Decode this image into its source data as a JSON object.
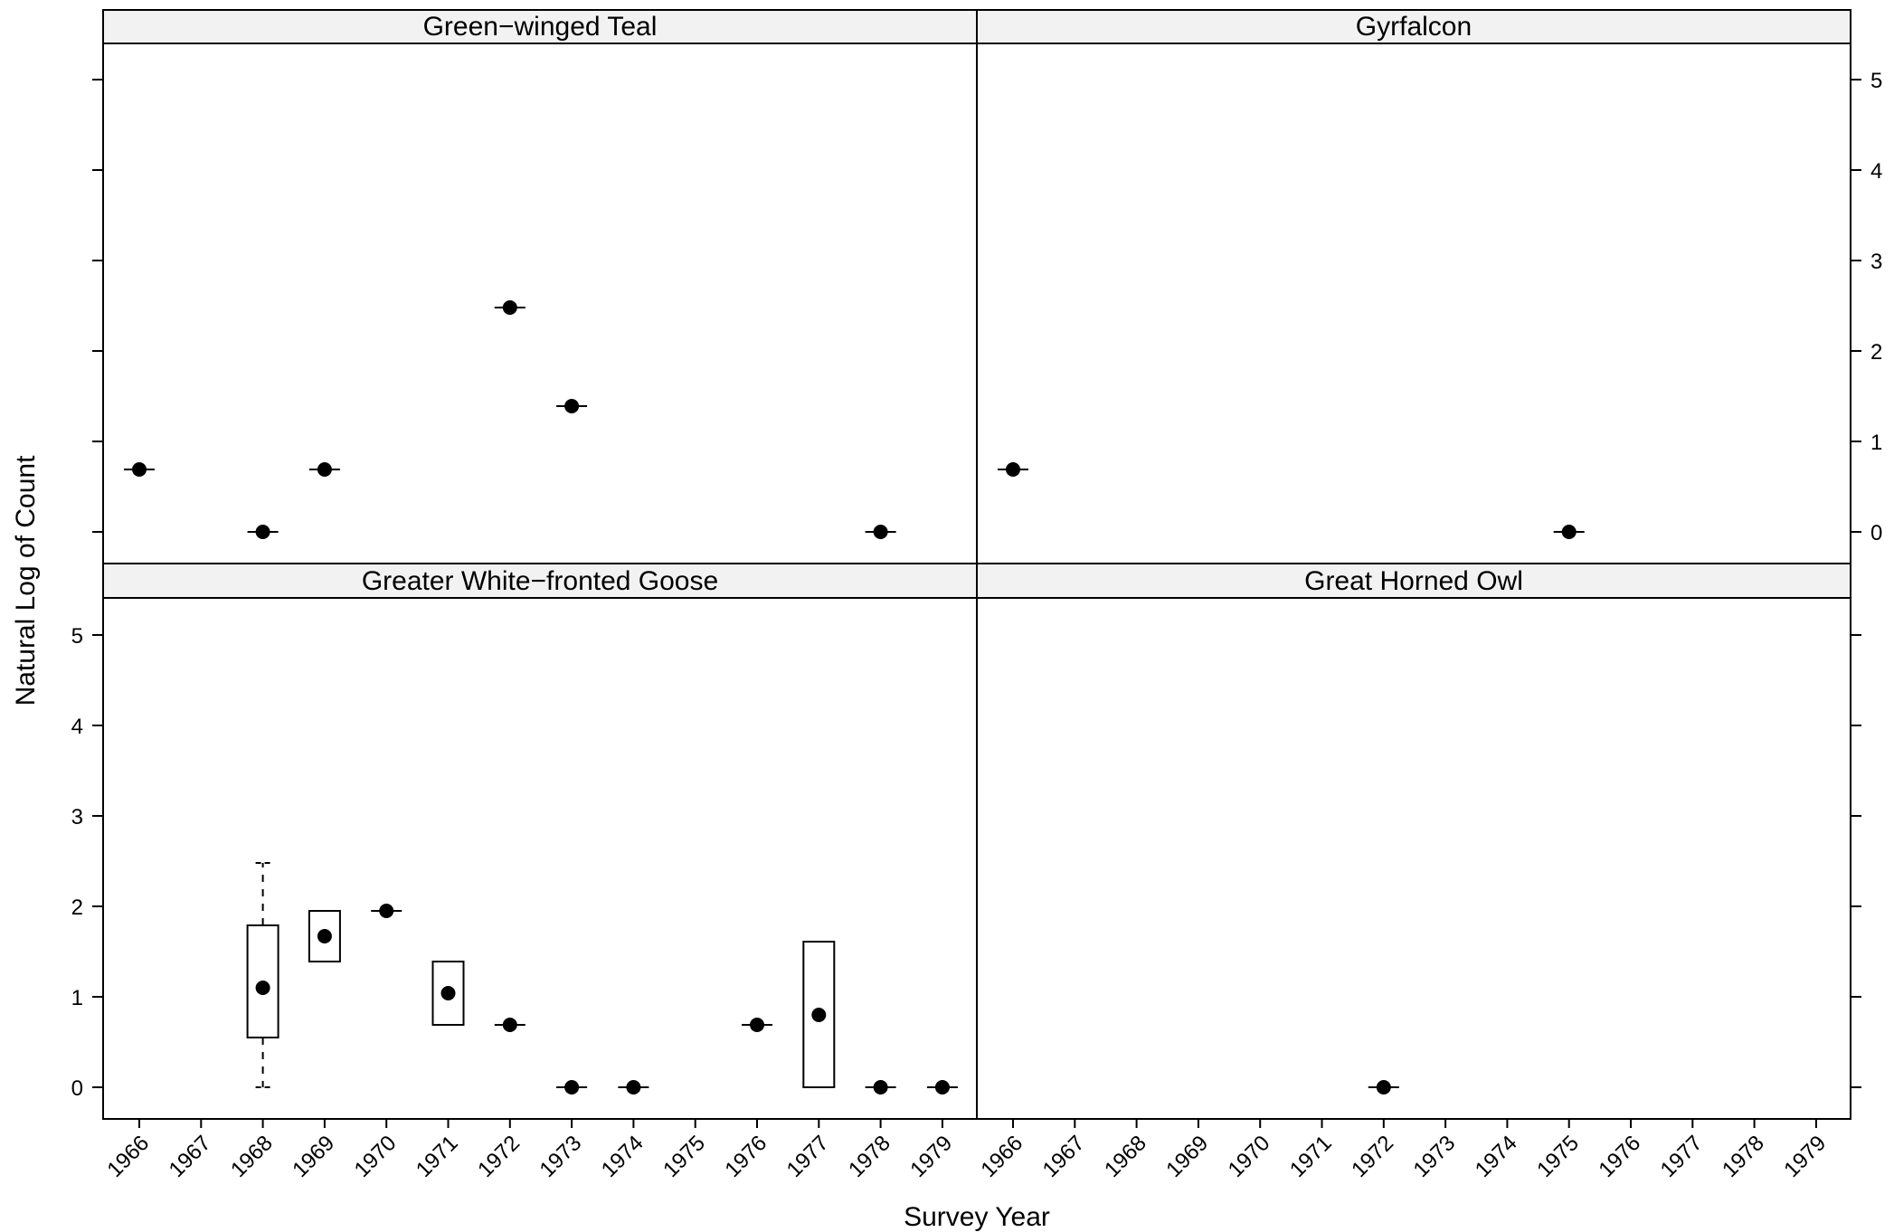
{
  "chart_data": {
    "type": "box",
    "xlabel": "Survey Year",
    "ylabel": "Natural Log of Count",
    "x_categories": [
      "1966",
      "1967",
      "1968",
      "1969",
      "1970",
      "1971",
      "1972",
      "1973",
      "1974",
      "1975",
      "1976",
      "1977",
      "1978",
      "1979"
    ],
    "y_ticks": [
      0,
      1,
      2,
      3,
      4,
      5
    ],
    "ylim": [
      -0.35,
      5.35
    ],
    "grid": false,
    "legend": "none",
    "panels": [
      {
        "title": "Green−winged Teal",
        "position": "top-left",
        "boxes": [
          {
            "year": "1966",
            "min": 0.69,
            "q1": 0.69,
            "median": 0.69,
            "q3": 0.69,
            "max": 0.69
          },
          {
            "year": "1968",
            "min": 0.0,
            "q1": 0.0,
            "median": 0.0,
            "q3": 0.0,
            "max": 0.0
          },
          {
            "year": "1969",
            "min": 0.69,
            "q1": 0.69,
            "median": 0.69,
            "q3": 0.69,
            "max": 0.69
          },
          {
            "year": "1972",
            "min": 2.48,
            "q1": 2.48,
            "median": 2.48,
            "q3": 2.48,
            "max": 2.48
          },
          {
            "year": "1973",
            "min": 1.39,
            "q1": 1.39,
            "median": 1.39,
            "q3": 1.39,
            "max": 1.39
          },
          {
            "year": "1978",
            "min": 0.0,
            "q1": 0.0,
            "median": 0.0,
            "q3": 0.0,
            "max": 0.0
          }
        ]
      },
      {
        "title": "Gyrfalcon",
        "position": "top-right",
        "boxes": [
          {
            "year": "1966",
            "min": 0.69,
            "q1": 0.69,
            "median": 0.69,
            "q3": 0.69,
            "max": 0.69
          },
          {
            "year": "1975",
            "min": 0.0,
            "q1": 0.0,
            "median": 0.0,
            "q3": 0.0,
            "max": 0.0
          }
        ]
      },
      {
        "title": "Greater White−fronted Goose",
        "position": "bottom-left",
        "boxes": [
          {
            "year": "1968",
            "min": 0.0,
            "q1": 0.55,
            "median": 1.1,
            "q3": 1.79,
            "max": 2.48
          },
          {
            "year": "1969",
            "min": 1.39,
            "q1": 1.39,
            "median": 1.67,
            "q3": 1.95,
            "max": 1.95
          },
          {
            "year": "1970",
            "min": 1.95,
            "q1": 1.95,
            "median": 1.95,
            "q3": 1.95,
            "max": 1.95
          },
          {
            "year": "1971",
            "min": 0.69,
            "q1": 0.69,
            "median": 1.04,
            "q3": 1.39,
            "max": 1.39
          },
          {
            "year": "1972",
            "min": 0.69,
            "q1": 0.69,
            "median": 0.69,
            "q3": 0.69,
            "max": 0.69
          },
          {
            "year": "1973",
            "min": 0.0,
            "q1": 0.0,
            "median": 0.0,
            "q3": 0.0,
            "max": 0.0
          },
          {
            "year": "1974",
            "min": 0.0,
            "q1": 0.0,
            "median": 0.0,
            "q3": 0.0,
            "max": 0.0
          },
          {
            "year": "1976",
            "min": 0.69,
            "q1": 0.69,
            "median": 0.69,
            "q3": 0.69,
            "max": 0.69
          },
          {
            "year": "1977",
            "min": 0.0,
            "q1": 0.0,
            "median": 0.8,
            "q3": 1.61,
            "max": 1.61
          },
          {
            "year": "1978",
            "min": 0.0,
            "q1": 0.0,
            "median": 0.0,
            "q3": 0.0,
            "max": 0.0
          },
          {
            "year": "1979",
            "min": 0.0,
            "q1": 0.0,
            "median": 0.0,
            "q3": 0.0,
            "max": 0.0
          }
        ]
      },
      {
        "title": "Great Horned Owl",
        "position": "bottom-right",
        "boxes": [
          {
            "year": "1972",
            "min": 0.0,
            "q1": 0.0,
            "median": 0.0,
            "q3": 0.0,
            "max": 0.0
          }
        ]
      }
    ]
  },
  "colors": {
    "strip_background": "#f2f2f2",
    "border": "#000000",
    "marker": "#000000",
    "background": "#ffffff"
  }
}
